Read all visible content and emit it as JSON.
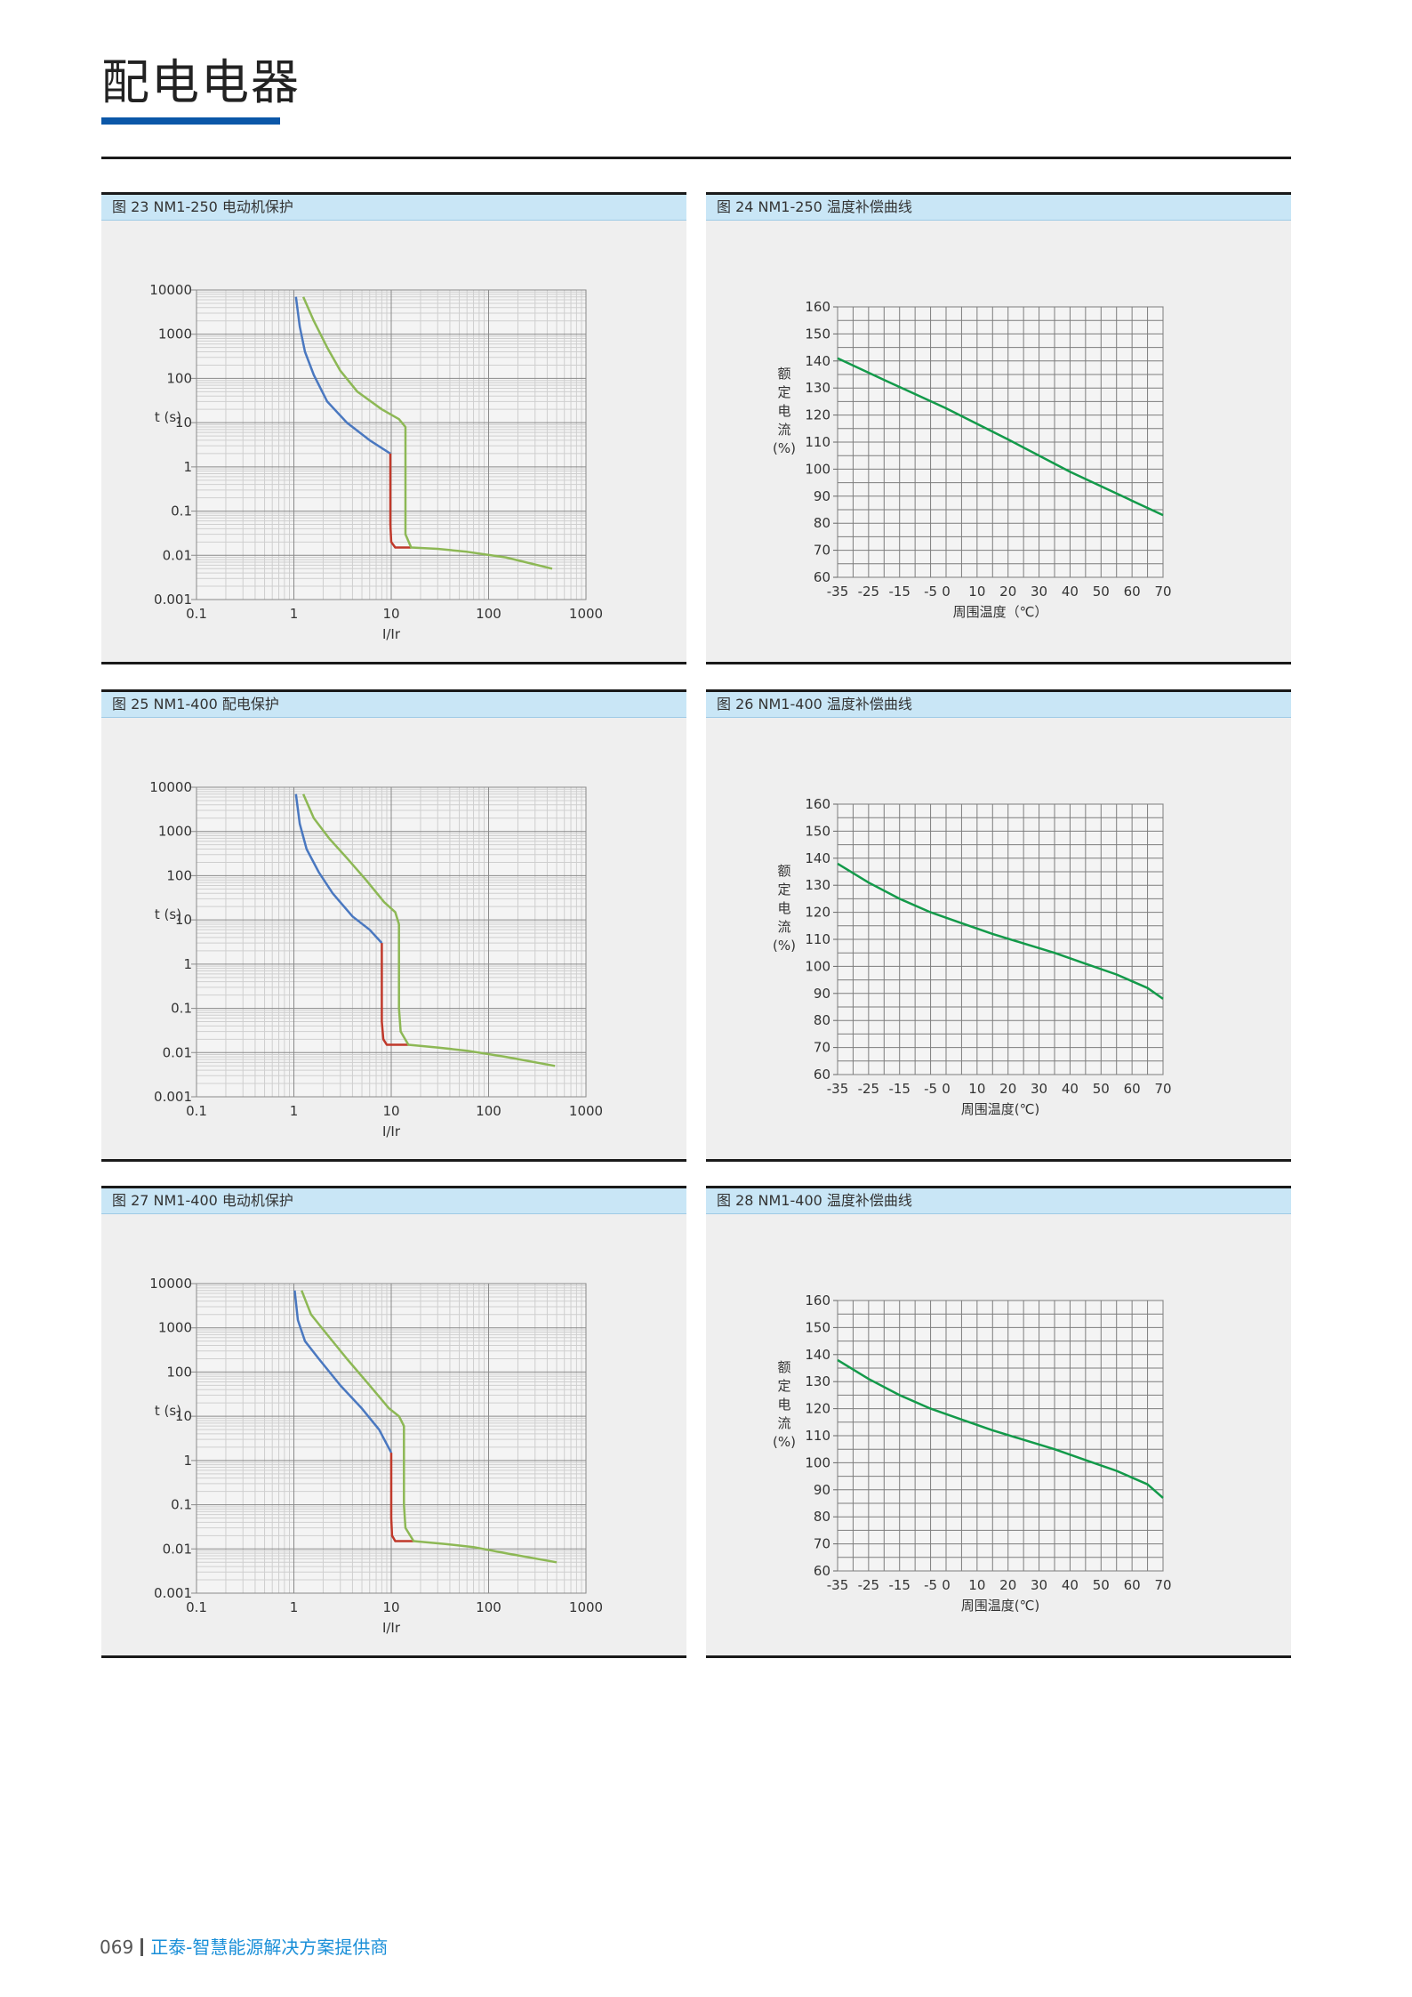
{
  "page": {
    "title": "配电电器",
    "footer_page": "069",
    "footer_brand": "正泰-智慧能源解决方案提供商"
  },
  "colors": {
    "accent_blue": "#0b57a8",
    "header_bg": "#c9e6f6",
    "panel_bg": "#efefef",
    "curve_blue": "#4a78c0",
    "curve_green": "#8db855",
    "curve_red": "#c0392b",
    "temp_line": "#139a4a"
  },
  "panels": [
    {
      "title": "图 23 NM1-250 电动机保护"
    },
    {
      "title": "图 24 NM1-250 温度补偿曲线"
    },
    {
      "title": "图 25  NM1-400 配电保护"
    },
    {
      "title": "图 26 NM1-400 温度补偿曲线"
    },
    {
      "title": "图 27 NM1-400 电动机保护"
    },
    {
      "title": "图 28 NM1-400 温度补偿曲线"
    }
  ],
  "chart_data": [
    {
      "type": "line",
      "panel": 0,
      "xscale": "log",
      "yscale": "log",
      "xlim": [
        0.1,
        1000
      ],
      "ylim": [
        0.001,
        10000
      ],
      "xlabel": "I/Ir",
      "ylabel": "t (s)",
      "x_ticks": [
        "0.1",
        "1",
        "10",
        "100",
        "1000"
      ],
      "y_ticks": [
        "0.001",
        "0.01",
        "0.1",
        "1",
        "10",
        "100",
        "1000",
        "10000"
      ],
      "series": [
        {
          "color": "blue",
          "points": [
            [
              1.05,
              7000
            ],
            [
              1.15,
              1500
            ],
            [
              1.3,
              400
            ],
            [
              1.6,
              120
            ],
            [
              2.2,
              30
            ],
            [
              3.5,
              10
            ],
            [
              6,
              4
            ],
            [
              9.8,
              2
            ]
          ]
        },
        {
          "color": "red",
          "points": [
            [
              9.8,
              2
            ],
            [
              9.8,
              0.3
            ],
            [
              9.8,
              0.05
            ],
            [
              10,
              0.02
            ],
            [
              11,
              0.015
            ],
            [
              16,
              0.015
            ]
          ]
        },
        {
          "color": "green",
          "points": [
            [
              1.25,
              7000
            ],
            [
              1.6,
              2000
            ],
            [
              2.2,
              500
            ],
            [
              3,
              150
            ],
            [
              4.5,
              50
            ],
            [
              8,
              20
            ],
            [
              12,
              12
            ],
            [
              14,
              8
            ],
            [
              14,
              1
            ],
            [
              14,
              0.1
            ],
            [
              14,
              0.03
            ],
            [
              16,
              0.015
            ],
            [
              30,
              0.014
            ],
            [
              60,
              0.012
            ],
            [
              150,
              0.009
            ],
            [
              450,
              0.005
            ]
          ]
        }
      ]
    },
    {
      "type": "line",
      "panel": 1,
      "xlim": [
        -35,
        70
      ],
      "ylim": [
        60,
        160
      ],
      "xlabel": "周围温度（℃）",
      "ylabel": "额定电流(%)",
      "x_ticks": [
        "-35",
        "-25",
        "-15",
        "-5",
        "0",
        "10",
        "20",
        "30",
        "40",
        "50",
        "60",
        "70"
      ],
      "y_ticks": [
        "60",
        "70",
        "80",
        "90",
        "100",
        "110",
        "120",
        "130",
        "140",
        "150",
        "160"
      ],
      "series": [
        {
          "color": "green",
          "points": [
            [
              -35,
              141
            ],
            [
              -20,
              133
            ],
            [
              0,
              122.5
            ],
            [
              20,
              111
            ],
            [
              40,
              99
            ],
            [
              55,
              91
            ],
            [
              70,
              83
            ]
          ]
        }
      ]
    },
    {
      "type": "line",
      "panel": 2,
      "xscale": "log",
      "yscale": "log",
      "xlim": [
        0.1,
        1000
      ],
      "ylim": [
        0.001,
        10000
      ],
      "xlabel": "I/Ir",
      "ylabel": "t (s)",
      "x_ticks": [
        "0.1",
        "1",
        "10",
        "100",
        "1000"
      ],
      "y_ticks": [
        "0.001",
        "0.01",
        "0.1",
        "1",
        "10",
        "100",
        "1000",
        "10000"
      ],
      "series": [
        {
          "color": "blue",
          "points": [
            [
              1.05,
              7000
            ],
            [
              1.15,
              1500
            ],
            [
              1.35,
              400
            ],
            [
              1.8,
              120
            ],
            [
              2.5,
              40
            ],
            [
              4,
              12
            ],
            [
              6,
              6
            ],
            [
              8,
              3
            ]
          ]
        },
        {
          "color": "red",
          "points": [
            [
              8,
              3
            ],
            [
              8,
              0.3
            ],
            [
              8,
              0.05
            ],
            [
              8.3,
              0.02
            ],
            [
              9,
              0.015
            ],
            [
              15,
              0.015
            ]
          ]
        },
        {
          "color": "green",
          "points": [
            [
              1.25,
              7000
            ],
            [
              1.6,
              2000
            ],
            [
              2.3,
              700
            ],
            [
              3.5,
              250
            ],
            [
              5.5,
              80
            ],
            [
              8.5,
              25
            ],
            [
              11,
              15
            ],
            [
              12,
              8
            ],
            [
              12,
              1
            ],
            [
              12,
              0.1
            ],
            [
              12.5,
              0.03
            ],
            [
              15,
              0.015
            ],
            [
              30,
              0.013
            ],
            [
              60,
              0.011
            ],
            [
              150,
              0.008
            ],
            [
              480,
              0.005
            ]
          ]
        }
      ]
    },
    {
      "type": "line",
      "panel": 3,
      "xlim": [
        -35,
        70
      ],
      "ylim": [
        60,
        160
      ],
      "xlabel": "周围温度(℃)",
      "ylabel": "额定电流(%)",
      "x_ticks": [
        "-35",
        "-25",
        "-15",
        "-5",
        "0",
        "10",
        "20",
        "30",
        "40",
        "50",
        "60",
        "70"
      ],
      "y_ticks": [
        "60",
        "70",
        "80",
        "90",
        "100",
        "110",
        "120",
        "130",
        "140",
        "150",
        "160"
      ],
      "series": [
        {
          "color": "green",
          "points": [
            [
              -35,
              138
            ],
            [
              -25,
              131
            ],
            [
              -15,
              125
            ],
            [
              -5,
              120
            ],
            [
              5,
              116
            ],
            [
              15,
              112
            ],
            [
              25,
              108.5
            ],
            [
              35,
              105
            ],
            [
              45,
              101
            ],
            [
              55,
              97
            ],
            [
              65,
              92
            ],
            [
              70,
              88
            ]
          ]
        }
      ]
    },
    {
      "type": "line",
      "panel": 4,
      "xscale": "log",
      "yscale": "log",
      "xlim": [
        0.1,
        1000
      ],
      "ylim": [
        0.001,
        10000
      ],
      "xlabel": "I/Ir",
      "ylabel": "t (s)",
      "x_ticks": [
        "0.1",
        "1",
        "10",
        "100",
        "1000"
      ],
      "y_ticks": [
        "0.001",
        "0.01",
        "0.1",
        "1",
        "10",
        "100",
        "1000",
        "10000"
      ],
      "series": [
        {
          "color": "blue",
          "points": [
            [
              1.02,
              7000
            ],
            [
              1.1,
              1500
            ],
            [
              1.3,
              500
            ],
            [
              1.8,
              200
            ],
            [
              3,
              50
            ],
            [
              5,
              15
            ],
            [
              7.5,
              5
            ],
            [
              10,
              1.5
            ]
          ]
        },
        {
          "color": "red",
          "points": [
            [
              10,
              1.5
            ],
            [
              10,
              0.3
            ],
            [
              10,
              0.05
            ],
            [
              10.2,
              0.02
            ],
            [
              11,
              0.015
            ],
            [
              17,
              0.015
            ]
          ]
        },
        {
          "color": "green",
          "points": [
            [
              1.2,
              7000
            ],
            [
              1.5,
              2000
            ],
            [
              2.2,
              700
            ],
            [
              3.5,
              200
            ],
            [
              6,
              50
            ],
            [
              9.5,
              15
            ],
            [
              12,
              10
            ],
            [
              13.5,
              6
            ],
            [
              13.5,
              1
            ],
            [
              13.5,
              0.1
            ],
            [
              14,
              0.03
            ],
            [
              17,
              0.015
            ],
            [
              35,
              0.013
            ],
            [
              70,
              0.011
            ],
            [
              150,
              0.008
            ],
            [
              500,
              0.005
            ]
          ]
        }
      ]
    },
    {
      "type": "line",
      "panel": 5,
      "xlim": [
        -35,
        70
      ],
      "ylim": [
        60,
        160
      ],
      "xlabel": "周围温度(℃)",
      "ylabel": "额定电流(%)",
      "x_ticks": [
        "-35",
        "-25",
        "-15",
        "-5",
        "0",
        "10",
        "20",
        "30",
        "40",
        "50",
        "60",
        "70"
      ],
      "y_ticks": [
        "60",
        "70",
        "80",
        "90",
        "100",
        "110",
        "120",
        "130",
        "140",
        "150",
        "160"
      ],
      "series": [
        {
          "color": "green",
          "points": [
            [
              -35,
              138
            ],
            [
              -25,
              131
            ],
            [
              -15,
              125
            ],
            [
              -5,
              120
            ],
            [
              5,
              116
            ],
            [
              15,
              112
            ],
            [
              25,
              108.5
            ],
            [
              35,
              105
            ],
            [
              45,
              101
            ],
            [
              55,
              97
            ],
            [
              65,
              92
            ],
            [
              70,
              87
            ]
          ]
        }
      ]
    }
  ]
}
